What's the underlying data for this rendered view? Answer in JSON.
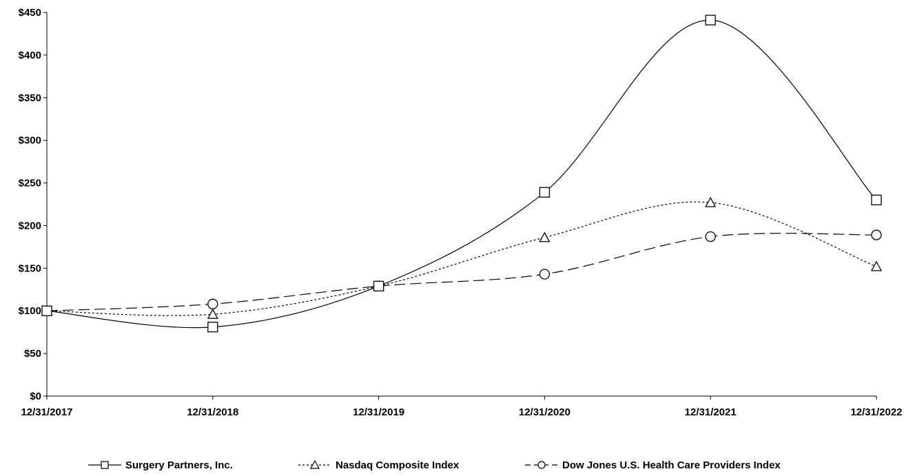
{
  "chart_data": {
    "type": "line",
    "x": [
      "12/31/2017",
      "12/31/2018",
      "12/31/2019",
      "12/31/2020",
      "12/31/2021",
      "12/31/2022"
    ],
    "ylim": [
      0,
      450
    ],
    "yticks": [
      0,
      50,
      100,
      150,
      200,
      250,
      300,
      350,
      400,
      450
    ],
    "ytick_labels": [
      "$0",
      "$50",
      "$100",
      "$150",
      "$200",
      "$250",
      "$300",
      "$350",
      "$400",
      "$450"
    ],
    "grid": false,
    "legend": "bottom",
    "title": "",
    "xlabel": "",
    "ylabel": "",
    "series": [
      {
        "name": "Surgery Partners, Inc.",
        "values": [
          100,
          81,
          129,
          239,
          441,
          230
        ],
        "marker": "square",
        "line": "solid",
        "color": "#000000"
      },
      {
        "name": "Nasdaq Composite Index",
        "values": [
          100,
          96,
          129,
          186,
          227,
          152
        ],
        "marker": "triangle",
        "line": "dotted",
        "color": "#000000"
      },
      {
        "name": "Dow Jones U.S. Health Care Providers Index",
        "values": [
          100,
          108,
          129,
          143,
          187,
          189
        ],
        "marker": "circle",
        "line": "dashed",
        "color": "#000000"
      }
    ]
  }
}
